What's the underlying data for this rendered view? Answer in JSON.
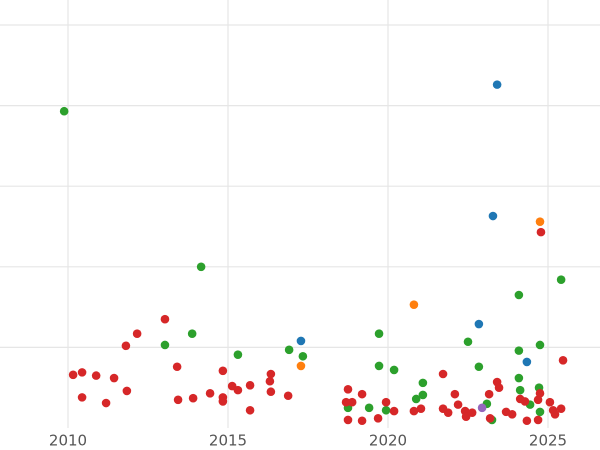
{
  "chart_data": {
    "type": "scatter",
    "grid": true,
    "ytick_labels": false,
    "xlim": [
      2007.875,
      2026.625
    ],
    "ylim": [
      0,
      5.31
    ],
    "xticks": [
      2010,
      2015,
      2020,
      2025
    ],
    "yticks": [
      1,
      2,
      3,
      4,
      5
    ],
    "series": [
      {
        "color": "#2ca02c",
        "x": [
          2009.88,
          2013.03,
          2013.88,
          2014.16,
          2015.31,
          2016.91,
          2017.34,
          2018.75,
          2019.41,
          2019.72,
          2019.72,
          2019.94,
          2020.19,
          2020.88,
          2021.09,
          2021.09,
          2022.5,
          2022.84,
          2023.09,
          2023.25,
          2024.09,
          2024.09,
          2024.09,
          2024.13,
          2024.44,
          2024.75,
          2024.72,
          2024.75,
          2025.41
        ],
        "values": [
          3.93,
          1.03,
          1.17,
          2.0,
          0.91,
          0.97,
          0.89,
          0.25,
          0.25,
          1.17,
          0.77,
          0.22,
          0.72,
          0.36,
          0.56,
          0.41,
          1.07,
          0.76,
          0.3,
          0.1,
          1.65,
          0.96,
          0.62,
          0.47,
          0.29,
          1.03,
          0.5,
          0.2,
          1.84
        ]
      },
      {
        "color": "#d62728",
        "x": [
          2010.16,
          2010.44,
          2010.44,
          2010.88,
          2011.19,
          2011.44,
          2011.81,
          2011.84,
          2012.16,
          2013.03,
          2013.41,
          2013.44,
          2013.91,
          2014.44,
          2014.84,
          2014.84,
          2014.84,
          2015.13,
          2015.31,
          2015.69,
          2015.69,
          2016.31,
          2016.34,
          2016.34,
          2016.88,
          2018.75,
          2018.69,
          2018.88,
          2018.75,
          2019.19,
          2019.19,
          2019.69,
          2019.94,
          2020.19,
          2020.81,
          2021.03,
          2021.72,
          2021.72,
          2021.88,
          2022.09,
          2022.19,
          2022.41,
          2022.44,
          2022.63,
          2023.16,
          2023.19,
          2023.41,
          2023.47,
          2023.69,
          2023.88,
          2024.13,
          2024.28,
          2024.34,
          2024.69,
          2024.75,
          2024.69,
          2024.78,
          2025.06,
          2025.16,
          2025.22,
          2025.41,
          2025.47
        ],
        "values": [
          0.66,
          0.69,
          0.38,
          0.65,
          0.31,
          0.62,
          1.02,
          0.46,
          1.17,
          1.35,
          0.76,
          0.35,
          0.37,
          0.43,
          0.71,
          0.38,
          0.33,
          0.52,
          0.47,
          0.53,
          0.22,
          0.58,
          0.67,
          0.45,
          0.4,
          0.48,
          0.32,
          0.32,
          0.1,
          0.42,
          0.09,
          0.12,
          0.32,
          0.21,
          0.21,
          0.24,
          0.67,
          0.24,
          0.19,
          0.42,
          0.29,
          0.21,
          0.14,
          0.19,
          0.42,
          0.12,
          0.57,
          0.5,
          0.2,
          0.17,
          0.36,
          0.33,
          0.09,
          0.35,
          0.43,
          0.1,
          2.43,
          0.32,
          0.22,
          0.17,
          0.24,
          0.84
        ]
      },
      {
        "color": "#1f77b4",
        "x": [
          2017.28,
          2023.41,
          2023.28,
          2022.84,
          2024.34
        ],
        "values": [
          1.08,
          4.26,
          2.63,
          1.29,
          0.82
        ]
      },
      {
        "color": "#ff7f0e",
        "x": [
          2017.28,
          2020.81,
          2024.75
        ],
        "values": [
          0.77,
          1.53,
          2.56
        ]
      },
      {
        "color": "#9467bd",
        "x": [
          2022.94
        ],
        "values": [
          0.25
        ]
      }
    ]
  }
}
